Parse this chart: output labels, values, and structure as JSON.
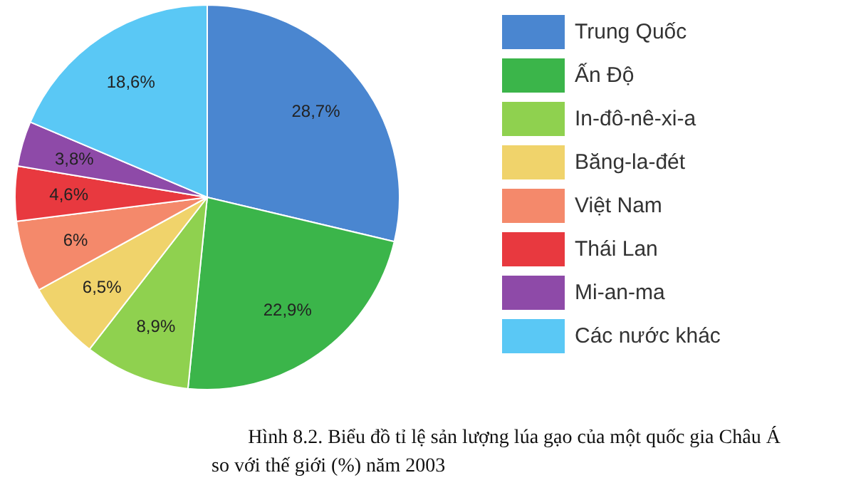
{
  "chart_data": {
    "type": "pie",
    "title": "Hình 8.2. Biểu đồ tỉ lệ sản lượng lúa gạo của một quốc gia Châu Á",
    "subtitle": "so với thế giới (%) năm 2003",
    "categories": [
      "Trung Quốc",
      "Ấn Độ",
      "In-đô-nê-xi-a",
      "Băng-la-đét",
      "Việt Nam",
      "Thái Lan",
      "Mi-an-ma",
      "Các nước khác"
    ],
    "values": [
      28.7,
      22.9,
      8.9,
      6.5,
      6,
      4.6,
      3.8,
      18.6
    ],
    "colors": [
      "#4a86d0",
      "#3bb54a",
      "#8fd14f",
      "#f0d36b",
      "#f4896b",
      "#e8393f",
      "#8e4aa8",
      "#5ac8f5"
    ],
    "value_labels": [
      "28,7%",
      "22,9%",
      "8,9%",
      "6,5%",
      "6%",
      "4,6%",
      "3,8%",
      "18,6%"
    ],
    "legend": "right"
  }
}
